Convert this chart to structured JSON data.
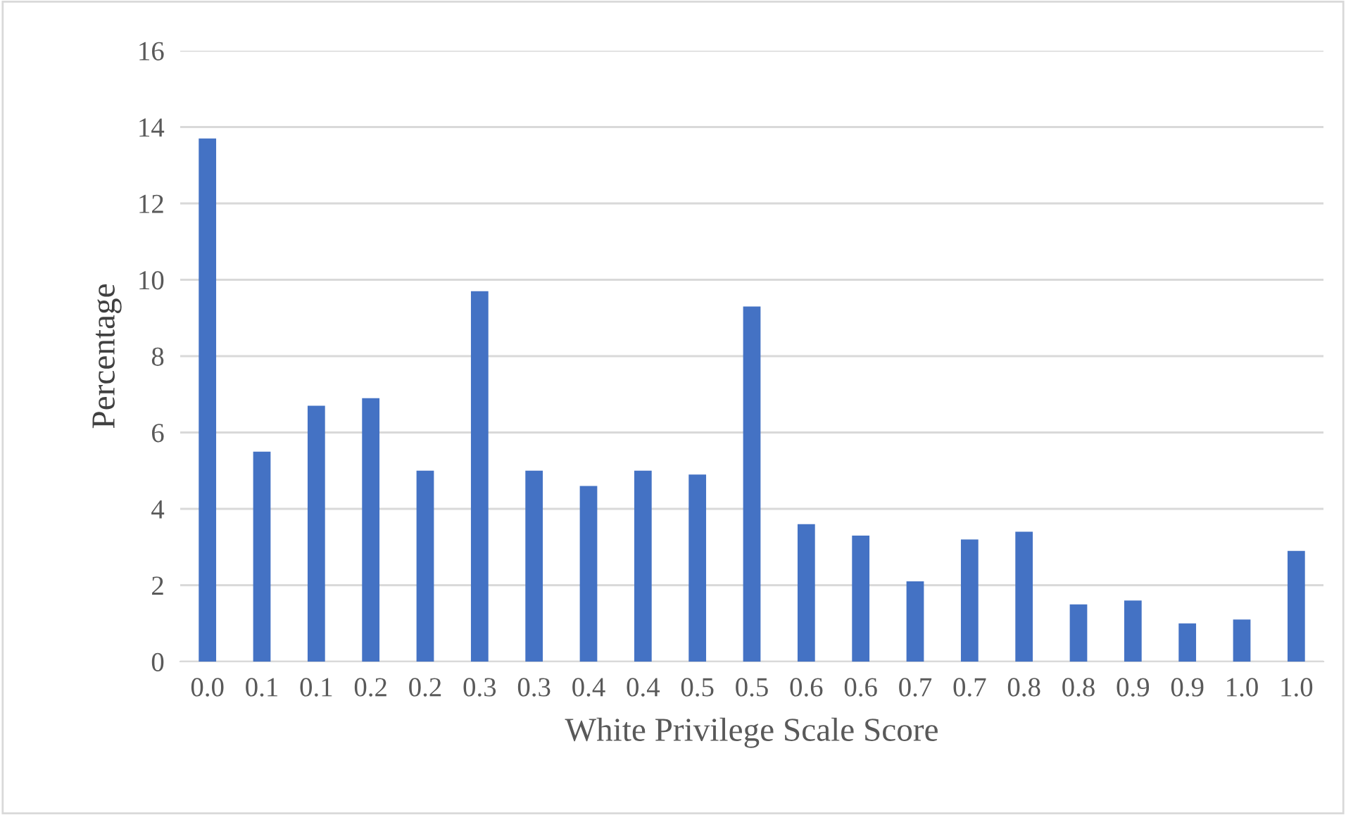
{
  "chart_data": {
    "type": "bar",
    "xlabel": "White Privilege Scale Score",
    "ylabel": "Percentage",
    "categories": [
      "0.0",
      "0.1",
      "0.1",
      "0.2",
      "0.2",
      "0.3",
      "0.3",
      "0.4",
      "0.4",
      "0.5",
      "0.5",
      "0.6",
      "0.6",
      "0.7",
      "0.7",
      "0.8",
      "0.8",
      "0.9",
      "0.9",
      "1.0",
      "1.0"
    ],
    "values": [
      13.7,
      5.5,
      6.7,
      6.9,
      5.0,
      9.7,
      5.0,
      4.6,
      5.0,
      4.9,
      9.3,
      3.6,
      3.3,
      2.1,
      3.2,
      3.4,
      1.5,
      1.6,
      1.0,
      1.1,
      2.9
    ],
    "color": "#4472c4",
    "ylim": [
      0,
      16
    ],
    "yticks": [
      0,
      2,
      4,
      6,
      8,
      10,
      12,
      14,
      16
    ],
    "grid": "y",
    "legend": false
  }
}
